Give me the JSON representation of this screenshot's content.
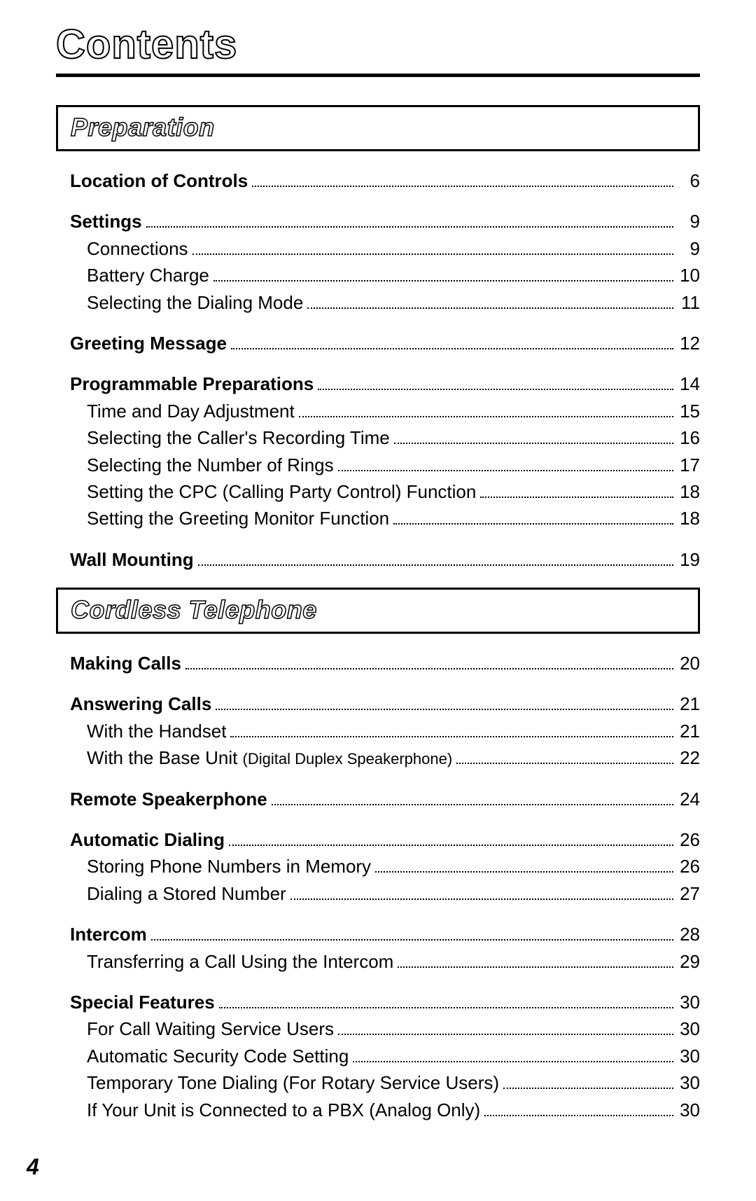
{
  "title": "Contents",
  "page_number": "4",
  "colors": {
    "text": "#000000",
    "background": "#ffffff",
    "outline_fill": "#ffffff"
  },
  "typography": {
    "title_fontsize": 58,
    "section_fontsize": 36,
    "body_fontsize": 26,
    "paren_fontsize": 22,
    "font_family": "Arial, Helvetica, sans-serif"
  },
  "sections": [
    {
      "header": "Preparation",
      "groups": [
        {
          "main": {
            "label": "Location of Controls",
            "page": "6"
          },
          "subs": []
        },
        {
          "main": {
            "label": "Settings",
            "page": "9"
          },
          "subs": [
            {
              "label": "Connections",
              "page": "9"
            },
            {
              "label": "Battery Charge",
              "page": "10"
            },
            {
              "label": "Selecting the Dialing Mode",
              "page": "11"
            }
          ]
        },
        {
          "main": {
            "label": "Greeting Message",
            "page": "12"
          },
          "subs": []
        },
        {
          "main": {
            "label": "Programmable Preparations",
            "page": "14"
          },
          "subs": [
            {
              "label": "Time and Day Adjustment",
              "page": "15"
            },
            {
              "label": "Selecting the Caller's Recording Time",
              "page": "16"
            },
            {
              "label": "Selecting the Number of Rings",
              "page": "17"
            },
            {
              "label": "Setting the CPC (Calling Party Control) Function",
              "page": "18"
            },
            {
              "label": "Setting the Greeting Monitor Function",
              "page": "18"
            }
          ]
        },
        {
          "main": {
            "label": "Wall Mounting",
            "page": "19"
          },
          "subs": []
        }
      ]
    },
    {
      "header": "Cordless Telephone",
      "groups": [
        {
          "main": {
            "label": "Making Calls",
            "page": "20"
          },
          "subs": []
        },
        {
          "main": {
            "label": "Answering Calls",
            "page": "21"
          },
          "subs": [
            {
              "label": "With the Handset",
              "page": "21"
            },
            {
              "label": "With the Base Unit",
              "paren": "(Digital Duplex Speakerphone)",
              "page": "22"
            }
          ]
        },
        {
          "main": {
            "label": "Remote Speakerphone",
            "page": "24"
          },
          "subs": []
        },
        {
          "main": {
            "label": "Automatic Dialing",
            "page": "26"
          },
          "subs": [
            {
              "label": "Storing Phone Numbers in Memory",
              "page": "26"
            },
            {
              "label": "Dialing a Stored Number",
              "page": "27"
            }
          ]
        },
        {
          "main": {
            "label": "Intercom",
            "page": "28"
          },
          "subs": [
            {
              "label": "Transferring a Call Using the Intercom",
              "page": "29"
            }
          ]
        },
        {
          "main": {
            "label": "Special Features",
            "page": "30"
          },
          "subs": [
            {
              "label": "For Call Waiting Service Users",
              "page": "30"
            },
            {
              "label": "Automatic Security Code Setting",
              "page": "30"
            },
            {
              "label": "Temporary Tone Dialing (For Rotary Service Users)",
              "page": "30"
            },
            {
              "label": "If Your Unit is Connected to a PBX (Analog Only)",
              "page": "30"
            }
          ]
        }
      ]
    }
  ]
}
